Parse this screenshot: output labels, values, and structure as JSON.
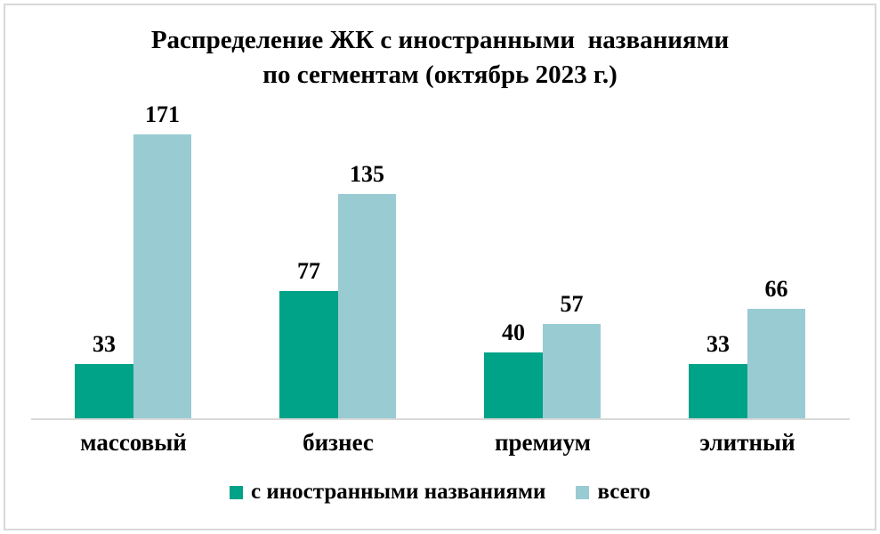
{
  "chart_data": {
    "type": "bar",
    "title": "Распределение ЖК с иностранными названиями по сегментам (октябрь 2023 г.)",
    "title_line1": "Распределение ЖК с иностранными  названиями",
    "title_line2": "по сегментам (октябрь 2023 г.)",
    "categories": [
      "массовый",
      "бизнес",
      "премиум",
      "элитный"
    ],
    "series": [
      {
        "name": "с иностранными названиями",
        "color": "#00A288",
        "values": [
          33,
          77,
          40,
          33
        ]
      },
      {
        "name": "всего",
        "color": "#99CBD3",
        "values": [
          171,
          135,
          57,
          66
        ]
      }
    ],
    "value_labels": [
      [
        33,
        77,
        40,
        33
      ],
      [
        171,
        135,
        57,
        66
      ]
    ],
    "ylim": [
      0,
      180
    ],
    "xlabel": "",
    "ylabel": "",
    "grid": false,
    "legend_position": "bottom",
    "axis_line_color": "#D9D9D9",
    "frame_border_color": "#D9D9D9",
    "text_color": "#000000",
    "background_color": "#FFFFFF"
  }
}
